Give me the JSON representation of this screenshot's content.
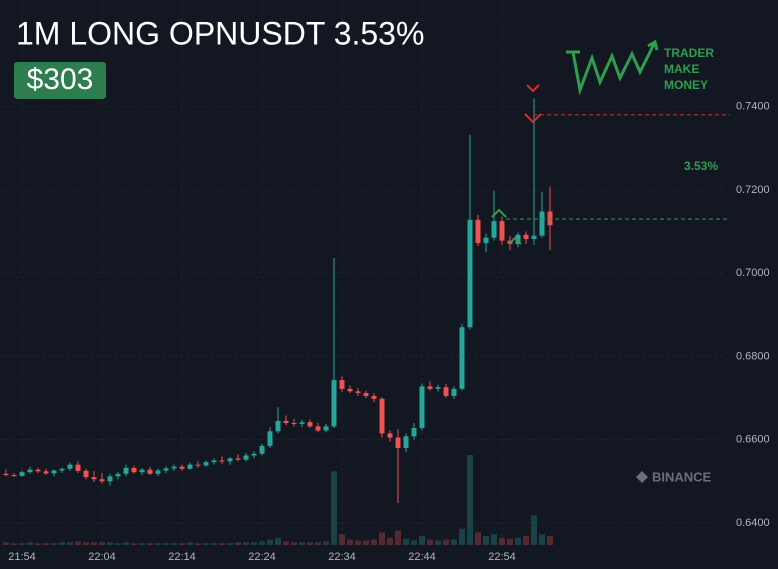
{
  "chart_data": {
    "type": "candlestick",
    "title": "1M LONG OPNUSDT 3.53%",
    "badge": "$303",
    "logo": [
      "TRADER",
      "MAKE",
      "MONEY"
    ],
    "watermark": "BINANCE",
    "pnl_label": "3.53%",
    "entry_price": 0.713,
    "target_price": 0.738,
    "up_color": "#26a69a",
    "down_color": "#ef5350",
    "entry_color": "#2e9e4f",
    "target_color": "#d32f2f",
    "grid": true,
    "ylim": [
      0.6347,
      0.7656
    ],
    "yticks": [
      {
        "value": 0.64,
        "label": "0.6400"
      },
      {
        "value": 0.66,
        "label": "0.6600"
      },
      {
        "value": 0.68,
        "label": "0.6800"
      },
      {
        "value": 0.7,
        "label": "0.7000"
      },
      {
        "value": 0.72,
        "label": "0.7200"
      },
      {
        "value": 0.74,
        "label": "0.7400"
      }
    ],
    "x": [
      "21:52",
      "21:53",
      "21:54",
      "21:55",
      "21:56",
      "21:57",
      "21:58",
      "21:59",
      "22:00",
      "22:01",
      "22:02",
      "22:03",
      "22:04",
      "22:05",
      "22:06",
      "22:07",
      "22:08",
      "22:09",
      "22:10",
      "22:11",
      "22:12",
      "22:13",
      "22:14",
      "22:15",
      "22:16",
      "22:17",
      "22:18",
      "22:19",
      "22:20",
      "22:21",
      "22:22",
      "22:23",
      "22:24",
      "22:25",
      "22:26",
      "22:27",
      "22:28",
      "22:29",
      "22:30",
      "22:31",
      "22:32",
      "22:33",
      "22:34",
      "22:35",
      "22:36",
      "22:37",
      "22:38",
      "22:39",
      "22:40",
      "22:41",
      "22:42",
      "22:43",
      "22:44",
      "22:45",
      "22:46",
      "22:47",
      "22:48",
      "22:49",
      "22:50",
      "22:51",
      "22:52",
      "22:53",
      "22:54",
      "22:55",
      "22:56",
      "22:57",
      "22:58",
      "22:59",
      "23:00"
    ],
    "xticks": [
      "21:54",
      "22:04",
      "22:14",
      "22:24",
      "22:34",
      "22:44",
      "22:54"
    ],
    "open": [
      0.6518,
      0.6515,
      0.6513,
      0.6522,
      0.6528,
      0.6524,
      0.6519,
      0.6526,
      0.653,
      0.654,
      0.6525,
      0.651,
      0.6505,
      0.65,
      0.6512,
      0.6518,
      0.6532,
      0.6522,
      0.6528,
      0.6518,
      0.6526,
      0.6531,
      0.6535,
      0.653,
      0.654,
      0.6538,
      0.6546,
      0.655,
      0.6548,
      0.6555,
      0.6552,
      0.6562,
      0.6566,
      0.6585,
      0.662,
      0.6645,
      0.664,
      0.6638,
      0.6642,
      0.6632,
      0.6622,
      0.6632,
      0.6743,
      0.6722,
      0.6716,
      0.6712,
      0.6705,
      0.6698,
      0.6615,
      0.6605,
      0.658,
      0.6608,
      0.6628,
      0.6728,
      0.6722,
      0.6726,
      0.6705,
      0.6722,
      0.687,
      0.7128,
      0.7072,
      0.7085,
      0.7125,
      0.7078,
      0.707,
      0.7092,
      0.7082,
      0.709,
      0.7148
    ],
    "high": [
      0.6528,
      0.652,
      0.6525,
      0.6535,
      0.6532,
      0.653,
      0.6528,
      0.6533,
      0.6545,
      0.6548,
      0.653,
      0.6525,
      0.652,
      0.6518,
      0.6522,
      0.654,
      0.6538,
      0.6532,
      0.6535,
      0.653,
      0.6536,
      0.654,
      0.654,
      0.6545,
      0.6548,
      0.655,
      0.6555,
      0.656,
      0.6558,
      0.6565,
      0.6568,
      0.6572,
      0.659,
      0.663,
      0.6678,
      0.6658,
      0.665,
      0.6648,
      0.6648,
      0.664,
      0.6638,
      0.7036,
      0.6752,
      0.673,
      0.6724,
      0.6718,
      0.6712,
      0.6702,
      0.6622,
      0.6625,
      0.6615,
      0.664,
      0.6735,
      0.674,
      0.6732,
      0.6734,
      0.6728,
      0.6878,
      0.7332,
      0.714,
      0.7095,
      0.7198,
      0.7135,
      0.709,
      0.7098,
      0.71,
      0.742,
      0.7195,
      0.7208
    ],
    "low": [
      0.6512,
      0.651,
      0.6511,
      0.6518,
      0.652,
      0.6515,
      0.6512,
      0.652,
      0.6525,
      0.652,
      0.6505,
      0.6498,
      0.6495,
      0.649,
      0.6505,
      0.6512,
      0.6518,
      0.6515,
      0.6515,
      0.6512,
      0.652,
      0.6525,
      0.6525,
      0.6528,
      0.6532,
      0.6535,
      0.654,
      0.6542,
      0.654,
      0.6548,
      0.6548,
      0.6555,
      0.6562,
      0.658,
      0.6615,
      0.6635,
      0.6632,
      0.663,
      0.6628,
      0.6618,
      0.6618,
      0.6628,
      0.6715,
      0.6712,
      0.6705,
      0.67,
      0.669,
      0.6605,
      0.6595,
      0.6448,
      0.657,
      0.66,
      0.6622,
      0.6718,
      0.6715,
      0.67,
      0.6698,
      0.6718,
      0.6865,
      0.7065,
      0.705,
      0.7078,
      0.7068,
      0.7055,
      0.7062,
      0.707,
      0.7068,
      0.7085,
      0.7055
    ],
    "close": [
      0.6515,
      0.6513,
      0.6522,
      0.6528,
      0.6524,
      0.6519,
      0.6526,
      0.653,
      0.654,
      0.6525,
      0.651,
      0.6505,
      0.65,
      0.6512,
      0.6518,
      0.6532,
      0.6522,
      0.6528,
      0.6518,
      0.6526,
      0.6531,
      0.6535,
      0.653,
      0.654,
      0.6538,
      0.6546,
      0.655,
      0.6548,
      0.6555,
      0.6552,
      0.6562,
      0.6566,
      0.6585,
      0.662,
      0.6645,
      0.664,
      0.6638,
      0.6642,
      0.6632,
      0.6622,
      0.6632,
      0.6743,
      0.6722,
      0.6716,
      0.6712,
      0.6705,
      0.6698,
      0.6615,
      0.6605,
      0.658,
      0.6608,
      0.6628,
      0.6728,
      0.6722,
      0.6726,
      0.6705,
      0.6722,
      0.687,
      0.7128,
      0.7072,
      0.7085,
      0.7125,
      0.7078,
      0.707,
      0.7092,
      0.7082,
      0.709,
      0.7148,
      0.7115
    ],
    "volume": [
      3,
      2,
      2,
      3,
      2,
      2,
      2,
      3,
      3,
      4,
      3,
      3,
      3,
      3,
      2,
      3,
      2,
      2,
      2,
      2,
      2,
      2,
      2,
      3,
      2,
      2,
      2,
      2,
      2,
      3,
      3,
      3,
      4,
      6,
      8,
      4,
      3,
      3,
      3,
      3,
      4,
      82,
      12,
      6,
      5,
      5,
      6,
      14,
      8,
      16,
      7,
      5,
      10,
      6,
      5,
      6,
      6,
      18,
      100,
      14,
      10,
      12,
      8,
      7,
      8,
      10,
      33,
      12,
      10
    ]
  }
}
